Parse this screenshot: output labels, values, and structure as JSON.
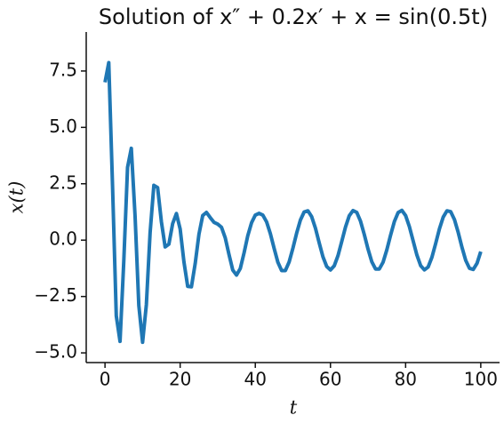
{
  "chart_data": {
    "type": "line",
    "title": "Solution of x″ + 0.2x′ + x = sin(0.5t)",
    "x_label": "t",
    "y_label": "x(t)",
    "x": [
      0,
      1,
      2,
      3,
      4,
      5,
      6,
      7,
      8,
      9,
      10,
      11,
      12,
      13,
      14,
      15,
      16,
      17,
      18,
      19,
      20,
      21,
      22,
      23,
      24,
      25,
      26,
      27,
      28,
      29,
      30,
      31,
      32,
      33,
      34,
      35,
      36,
      37,
      38,
      39,
      40,
      41,
      42,
      43,
      44,
      45,
      46,
      47,
      48,
      49,
      50,
      51,
      52,
      53,
      54,
      55,
      56,
      57,
      58,
      59,
      60,
      61,
      62,
      63,
      64,
      65,
      66,
      67,
      68,
      69,
      70,
      71,
      72,
      73,
      74,
      75,
      76,
      77,
      78,
      79,
      80,
      81,
      82,
      83,
      84,
      85,
      86,
      87,
      88,
      89,
      90,
      91,
      92,
      93,
      94,
      95,
      96,
      97,
      98,
      99,
      100
    ],
    "series": [
      {
        "name": "x(t)",
        "color": "#1f77b4",
        "values": [
          7.0,
          7.87,
          2.42,
          -3.36,
          -4.49,
          -0.92,
          3.23,
          4.07,
          1.07,
          -2.9,
          -4.53,
          -2.87,
          0.33,
          2.43,
          2.33,
          0.82,
          -0.3,
          -0.18,
          0.73,
          1.18,
          0.49,
          -0.96,
          -2.05,
          -2.07,
          -1.04,
          0.26,
          1.09,
          1.23,
          1.0,
          0.79,
          0.71,
          0.57,
          0.1,
          -0.64,
          -1.33,
          -1.55,
          -1.26,
          -0.57,
          0.2,
          0.77,
          1.11,
          1.19,
          1.11,
          0.81,
          0.29,
          -0.36,
          -0.98,
          -1.35,
          -1.35,
          -0.97,
          -0.36,
          0.31,
          0.89,
          1.25,
          1.3,
          1.04,
          0.53,
          -0.12,
          -0.74,
          -1.17,
          -1.32,
          -1.14,
          -0.69,
          -0.06,
          0.58,
          1.08,
          1.31,
          1.23,
          0.84,
          0.25,
          -0.4,
          -0.96,
          -1.28,
          -1.28,
          -0.98,
          -0.43,
          0.22,
          0.82,
          1.22,
          1.32,
          1.09,
          0.6,
          -0.03,
          -0.66,
          -1.13,
          -1.32,
          -1.19,
          -0.76,
          -0.15,
          0.5,
          1.02,
          1.3,
          1.26,
          0.91,
          0.34,
          -0.32,
          -0.9,
          -1.25,
          -1.3,
          -1.03,
          -0.51
        ]
      }
    ],
    "xlim": [
      -5,
      105
    ],
    "ylim": [
      -5.43,
      9.23
    ],
    "xticks": [
      0,
      20,
      40,
      60,
      80,
      100
    ],
    "yticks": [
      {
        "value": -5.0,
        "label": "−5.0"
      },
      {
        "value": -2.5,
        "label": "−2.5"
      },
      {
        "value": 0.0,
        "label": "0.0"
      },
      2.5,
      {
        "value": 5.0,
        "label": "5.0"
      },
      7.5
    ],
    "grid": false
  }
}
